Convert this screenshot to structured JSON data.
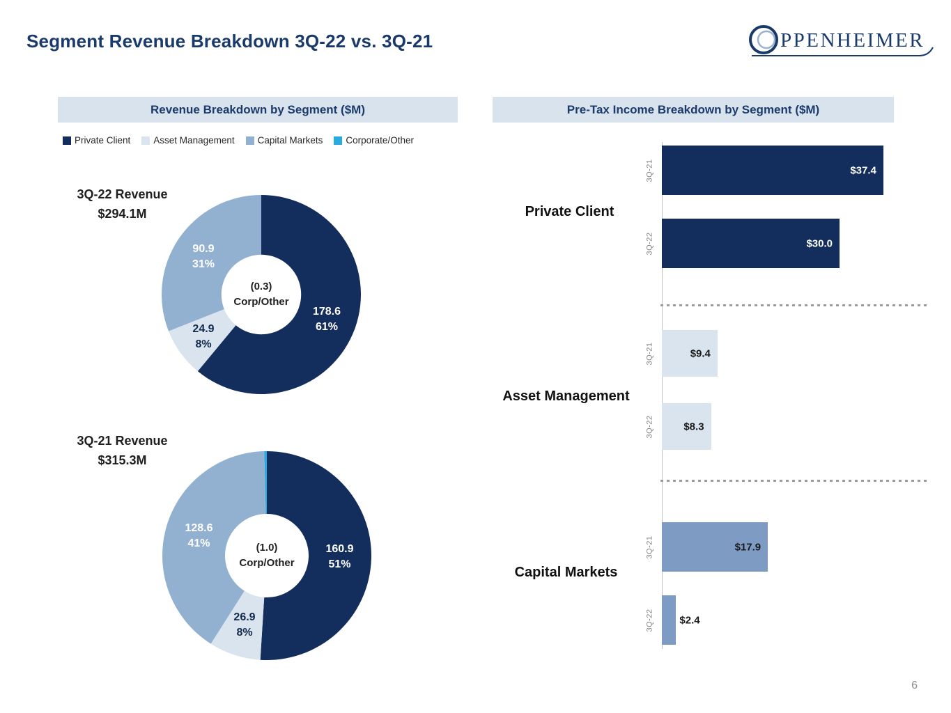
{
  "page": {
    "title": "Segment Revenue Breakdown 3Q-22 vs. 3Q-21",
    "page_number": "6"
  },
  "logo": {
    "first_letter": "O",
    "rest": "PPENHEIMER"
  },
  "colors": {
    "navy": "#132e5c",
    "light_blue": "#d9e4ee",
    "mid_blue": "#92b1d1",
    "bar_blue": "#7e9cc3",
    "cyan": "#29abe2",
    "band": "#d8e3ee",
    "title_navy": "#1a3a6b"
  },
  "left_panel": {
    "header": "Revenue Breakdown by Segment ($M)",
    "legend": [
      {
        "label": "Private Client",
        "color": "#132e5c"
      },
      {
        "label": "Asset Management",
        "color": "#d9e4ee"
      },
      {
        "label": "Capital Markets",
        "color": "#92b1d1"
      },
      {
        "label": "Corporate/Other",
        "color": "#29abe2"
      }
    ]
  },
  "right_panel": {
    "header": "Pre-Tax Income Breakdown by Segment ($M)"
  },
  "chart_data": [
    {
      "type": "pie",
      "id": "revenue-3q22-donut",
      "title_line1": "3Q-22 Revenue",
      "title_line2": "$294.1M",
      "total_label": "$294.1M",
      "center_line1": "(0.3)",
      "center_line2": "Corp/Other",
      "slices": [
        {
          "name": "Private Client",
          "value": 178.6,
          "pct": 61,
          "value_label": "178.6",
          "pct_label": "61%",
          "color": "#132e5c"
        },
        {
          "name": "Asset Management",
          "value": 24.9,
          "pct": 8,
          "value_label": "24.9",
          "pct_label": "8%",
          "color": "#d9e4ee"
        },
        {
          "name": "Capital Markets",
          "value": 90.9,
          "pct": 31,
          "value_label": "90.9",
          "pct_label": "31%",
          "color": "#92b1d1"
        }
      ],
      "corporate_other_value": -0.3
    },
    {
      "type": "pie",
      "id": "revenue-3q21-donut",
      "title_line1": "3Q-21 Revenue",
      "title_line2": "$315.3M",
      "total_label": "$315.3M",
      "center_line1": "(1.0)",
      "center_line2": "Corp/Other",
      "slices": [
        {
          "name": "Private Client",
          "value": 160.9,
          "pct": 51,
          "value_label": "160.9",
          "pct_label": "51%",
          "color": "#132e5c"
        },
        {
          "name": "Asset Management",
          "value": 26.9,
          "pct": 8,
          "value_label": "26.9",
          "pct_label": "8%",
          "color": "#d9e4ee"
        },
        {
          "name": "Capital Markets",
          "value": 128.6,
          "pct": 40.6,
          "value_label": "128.6",
          "pct_label": "41%",
          "color": "#92b1d1"
        },
        {
          "name": "Corporate/Other",
          "pct": 0.4,
          "value_label": "",
          "pct_label": "",
          "color": "#29abe2"
        }
      ],
      "corporate_other_value": -1.0
    },
    {
      "type": "bar",
      "id": "pretax-income",
      "title": "Pre-Tax Income Breakdown by Segment ($M)",
      "orientation": "horizontal",
      "unit": "$M",
      "groups": [
        {
          "label": "Private Client",
          "color": "#132e5c",
          "bars": [
            {
              "tick": "3Q-21",
              "value": 37.4,
              "label": "$37.4"
            },
            {
              "tick": "3Q-22",
              "value": 30.0,
              "label": "$30.0"
            }
          ]
        },
        {
          "label": "Asset Management",
          "color": "#d9e4ee",
          "bars": [
            {
              "tick": "3Q-21",
              "value": 9.4,
              "label": "$9.4"
            },
            {
              "tick": "3Q-22",
              "value": 8.3,
              "label": "$8.3"
            }
          ]
        },
        {
          "label": "Capital Markets",
          "color": "#7e9cc3",
          "bars": [
            {
              "tick": "3Q-21",
              "value": 17.9,
              "label": "$17.9"
            },
            {
              "tick": "3Q-22",
              "value": 2.4,
              "label": "$2.4"
            }
          ]
        }
      ]
    }
  ]
}
